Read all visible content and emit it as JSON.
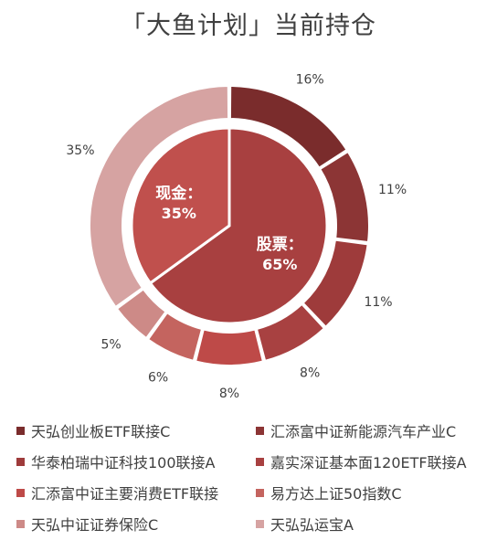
{
  "chart_data": {
    "title": "「大鱼计划」当前持仓",
    "inner": {
      "type": "pie",
      "slices": [
        {
          "name": "股票",
          "label": "股票：",
          "value": 65,
          "value_label": "65%",
          "color": "#A84040"
        },
        {
          "name": "现金",
          "label": "现金：",
          "value": 35,
          "value_label": "35%",
          "color": "#C0504D"
        }
      ]
    },
    "outer": {
      "type": "pie",
      "slices": [
        {
          "name": "天弘创业板ETF联接C",
          "value": 16,
          "label": "16%",
          "color": "#7A2C2C"
        },
        {
          "name": "汇添富中证新能源汽车产业C",
          "value": 11,
          "label": "11%",
          "color": "#8C3535"
        },
        {
          "name": "华泰柏瑞中证科技100联接A",
          "value": 11,
          "label": "11%",
          "color": "#9E3B3B"
        },
        {
          "name": "嘉实深证基本面120ETF联接A",
          "value": 8,
          "label": "8%",
          "color": "#A84141"
        },
        {
          "name": "汇添富中证主要消费ETF联接",
          "value": 8,
          "label": "8%",
          "color": "#BE4A48"
        },
        {
          "name": "易方达上证50指数C",
          "value": 6,
          "label": "6%",
          "color": "#C4645F"
        },
        {
          "name": "天弘中证证券保险C",
          "value": 5,
          "label": "5%",
          "color": "#CD8A87"
        },
        {
          "name": "天弘弘运宝A",
          "value": 35,
          "label": "35%",
          "color": "#D6A3A2"
        }
      ]
    },
    "legend": [
      "天弘创业板ETF联接C",
      "汇添富中证新能源汽车产业C",
      "华泰柏瑞中证科技100联接A",
      "嘉实深证基本面120ETF联接A",
      "汇添富中证主要消费ETF联接",
      "易方达上证50指数C",
      "天弘中证证券保险C",
      "天弘弘运宝A"
    ]
  }
}
